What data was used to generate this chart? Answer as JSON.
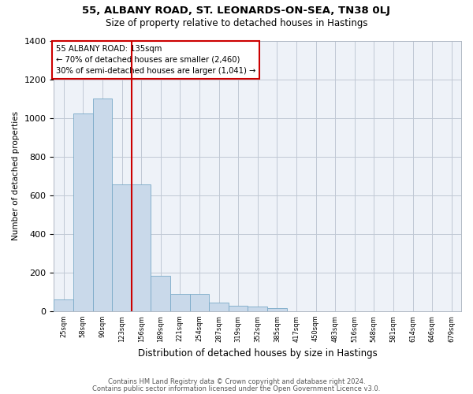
{
  "title1": "55, ALBANY ROAD, ST. LEONARDS-ON-SEA, TN38 0LJ",
  "title2": "Size of property relative to detached houses in Hastings",
  "xlabel": "Distribution of detached houses by size in Hastings",
  "ylabel": "Number of detached properties",
  "footer1": "Contains HM Land Registry data © Crown copyright and database right 2024.",
  "footer2": "Contains public sector information licensed under the Open Government Licence v3.0.",
  "annotation_title": "55 ALBANY ROAD: 135sqm",
  "annotation_line1": "← 70% of detached houses are smaller (2,460)",
  "annotation_line2": "30% of semi-detached houses are larger (1,041) →",
  "bar_categories": [
    "25sqm",
    "58sqm",
    "90sqm",
    "123sqm",
    "156sqm",
    "189sqm",
    "221sqm",
    "254sqm",
    "287sqm",
    "319sqm",
    "352sqm",
    "385sqm",
    "417sqm",
    "450sqm",
    "483sqm",
    "516sqm",
    "548sqm",
    "581sqm",
    "614sqm",
    "646sqm",
    "679sqm"
  ],
  "bar_values": [
    62,
    1023,
    1100,
    655,
    655,
    185,
    90,
    90,
    45,
    28,
    25,
    15,
    0,
    0,
    0,
    0,
    0,
    0,
    0,
    0,
    0
  ],
  "bar_color": "#c9d9ea",
  "bar_edge_color": "#7aaac8",
  "vline_color": "#cc0000",
  "vline_index": 3,
  "bg_color": "#eef2f8",
  "grid_color": "#c0c8d4",
  "ylim": [
    0,
    1400
  ],
  "yticks": [
    0,
    200,
    400,
    600,
    800,
    1000,
    1200,
    1400
  ],
  "annotation_box_edge_color": "#cc0000",
  "annotation_box_fill": "white",
  "title1_fontsize": 9.5,
  "title2_fontsize": 8.5
}
